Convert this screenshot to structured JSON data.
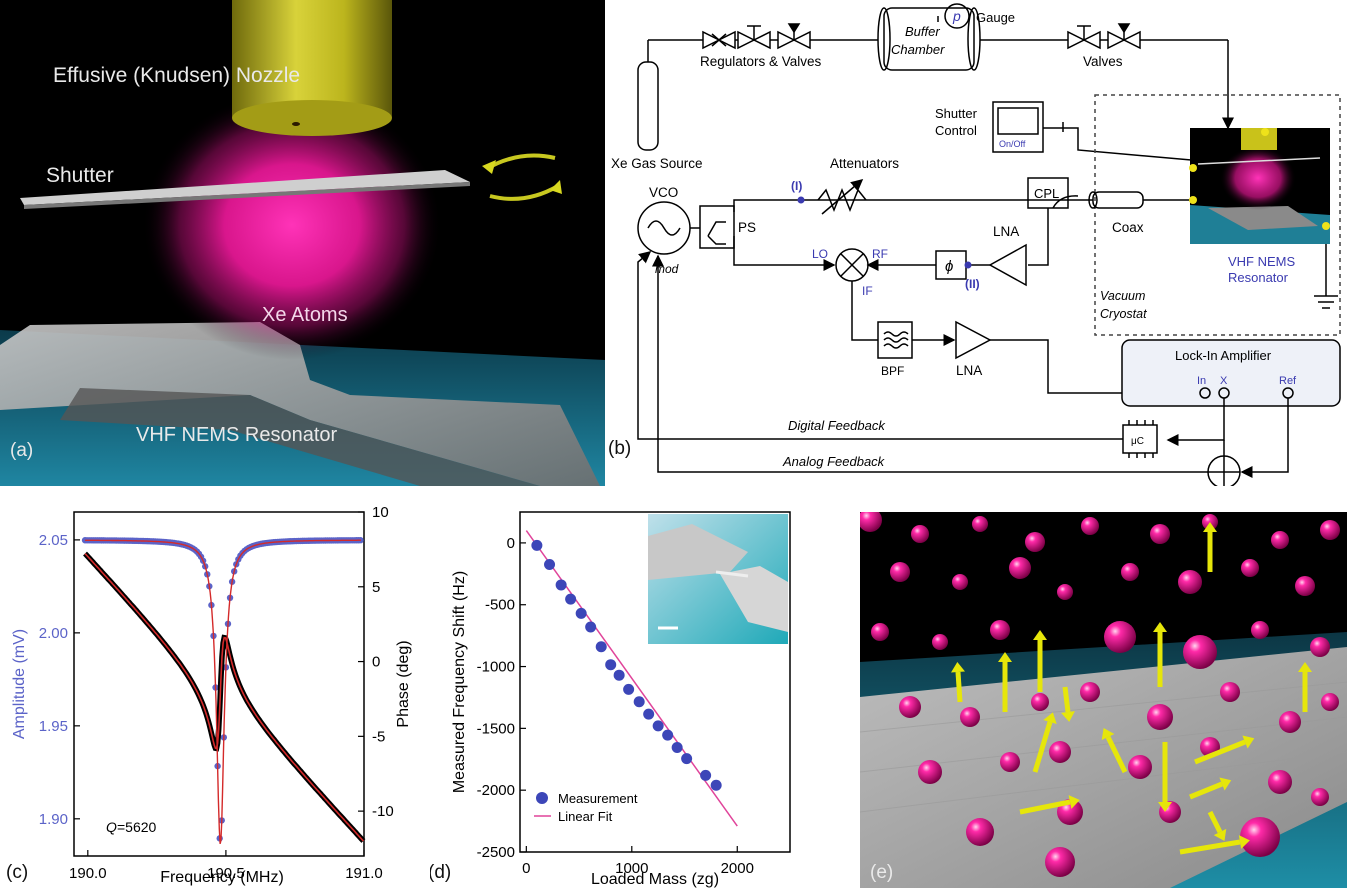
{
  "panel_a": {
    "nozzle_label": "Effusive (Knudsen) Nozzle",
    "shutter_label": "Shutter",
    "atoms_label": "Xe Atoms",
    "resonator_label": "VHF NEMS Resonator",
    "tag": "(a)"
  },
  "panel_b": {
    "tag": "(b)",
    "gauge_symbol": "p",
    "gauge_label": "Gauge",
    "buffer_label_1": "Buffer",
    "buffer_label_2": "Chamber",
    "regulators_label": "Regulators & Valves",
    "valves_label": "Valves",
    "gas_source_label": "Xe Gas Source",
    "shutter_control_1": "Shutter",
    "shutter_control_2": "Control",
    "onoff_label": "On/Off",
    "attenuators_label": "Attenuators",
    "node_I": "(I)",
    "node_II": "(II)",
    "vco_label": "VCO",
    "mod_label": "mod",
    "ps_label": "PS",
    "cpl_label": "CPL",
    "coax_label": "Coax",
    "lo_label": "LO",
    "rf_label": "RF",
    "if_label": "IF",
    "phi_label": "ϕ",
    "lna_label": "LNA",
    "bpf_label": "BPF",
    "lna2_label": "LNA",
    "vacuum_label_1": "Vacuum",
    "vacuum_label_2": "Cryostat",
    "resonator_label_1": "VHF NEMS",
    "resonator_label_2": "Resonator",
    "lockin_label": "Lock-In Amplifier",
    "lockin_in": "In",
    "lockin_x": "X",
    "lockin_ref": "Ref",
    "uc_label": "μC",
    "digital_feedback": "Digital Feedback",
    "analog_feedback": "Analog Feedback"
  },
  "panel_c": {
    "tag": "(c)",
    "q_label": "Q",
    "q_value": "=5620",
    "chart_data": {
      "type": "line",
      "xlabel": "Frequency  (MHz)",
      "ylabel_left": "Amplitude  (mV)",
      "ylabel_right": "Phase  (deg)",
      "xlim": [
        189.95,
        191.0
      ],
      "ylim_left": [
        1.88,
        2.065
      ],
      "ylim_right": [
        -13,
        10
      ],
      "x_ticks": [
        "190.0",
        "190.5",
        "191.0"
      ],
      "y_ticks_left": [
        "2.05",
        "2.00",
        "1.95",
        "1.90"
      ],
      "y_ticks_right": [
        "10",
        "5",
        "0",
        "-5",
        "-10"
      ],
      "resonance_center_mhz": 190.48,
      "q_factor": 5620,
      "amplitude_baseline_mv": 2.05,
      "amplitude_min_mv": 1.886,
      "phase_start_deg": 7.5,
      "phase_end_deg": -12.3,
      "series": [
        {
          "name": "Amplitude",
          "color": "#5b63c8"
        },
        {
          "name": "Phase",
          "color": "#000000"
        },
        {
          "name": "Fit",
          "color": "#d42a2a"
        }
      ]
    }
  },
  "panel_d": {
    "tag": "(d)",
    "chart_data": {
      "type": "scatter",
      "xlabel": "Loaded Mass  (zg)",
      "ylabel": "Measured Frequency Shift  (Hz)",
      "xlim": [
        -60,
        2500
      ],
      "ylim": [
        -2500,
        250
      ],
      "x_ticks": [
        "0",
        "1000",
        "2000"
      ],
      "y_ticks": [
        "0",
        "-500",
        "-1000",
        "-1500",
        "-2000",
        "-2500"
      ],
      "series": [
        {
          "name": "Measurement",
          "type": "scatter",
          "color": "#3c46b8",
          "x": [
            100,
            220,
            330,
            420,
            520,
            610,
            710,
            800,
            880,
            970,
            1070,
            1160,
            1250,
            1340,
            1430,
            1520,
            1700,
            1800
          ],
          "y": [
            -20,
            -175,
            -340,
            -455,
            -570,
            -680,
            -840,
            -985,
            -1070,
            -1185,
            -1285,
            -1385,
            -1480,
            -1555,
            -1655,
            -1745,
            -1880,
            -1960
          ]
        },
        {
          "name": "Linear Fit",
          "type": "line",
          "color": "#e0449a",
          "x": [
            0,
            2000
          ],
          "y": [
            100,
            -2290
          ]
        }
      ]
    }
  },
  "panel_e": {
    "tag": "(e)"
  },
  "colors": {
    "atom_pink": "#ff1aa5",
    "arrow_yellow": "#e6e60a",
    "nozzle_yellow": "#c9c21a",
    "substrate_blue": "#2aa0b8",
    "label_blue": "#3a3ab0"
  }
}
